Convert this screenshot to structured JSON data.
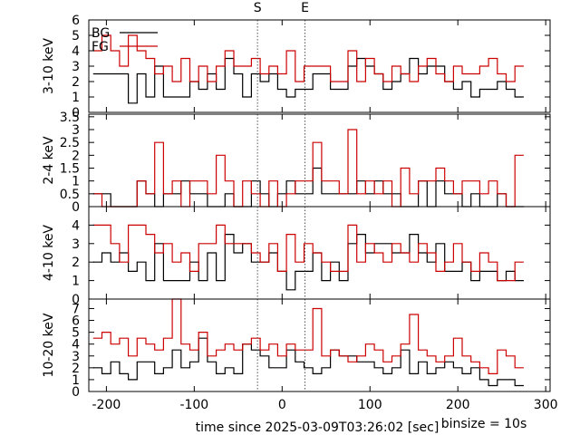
{
  "chart_data": {
    "type": "line",
    "xlabel": "time since 2025-03-09T03:26:02 [sec]",
    "binsize_label": "binsize = 10s",
    "xlim": [
      -220,
      305
    ],
    "xticks": [
      -200,
      -100,
      0,
      100,
      200,
      300
    ],
    "markers": [
      {
        "label": "S",
        "x": -28
      },
      {
        "label": "E",
        "x": 26
      }
    ],
    "legend": [
      {
        "name": "BG",
        "color": "#000000"
      },
      {
        "name": "FG",
        "color": "#cc0000"
      }
    ],
    "panels": [
      {
        "ylabel": "3-10 keV",
        "ylim": [
          0,
          6
        ],
        "yticks": [
          0,
          1,
          2,
          3,
          4,
          5,
          6
        ],
        "series": [
          {
            "name": "BG",
            "x_start": -215,
            "step": 10,
            "values": [
              2.5,
              2.5,
              2.5,
              2.5,
              0.6,
              2.5,
              1.0,
              3.0,
              1.0,
              1.0,
              1.0,
              2.0,
              1.5,
              2.5,
              1.5,
              3.5,
              2.5,
              1.0,
              2.5,
              2.0,
              2.5,
              1.5,
              1.0,
              1.5,
              1.5,
              2.5,
              2.5,
              1.5,
              1.5,
              3.0,
              3.5,
              3.0,
              2.5,
              1.5,
              2.0,
              2.5,
              3.5,
              2.5,
              3.0,
              3.0,
              2.0,
              1.5,
              2.0,
              1.0,
              1.5,
              1.5,
              2.0,
              1.5,
              1.0
            ]
          },
          {
            "name": "FG",
            "x_start": -215,
            "step": 10,
            "values": [
              4.0,
              5.0,
              4.0,
              3.0,
              5.0,
              4.0,
              3.5,
              2.5,
              3.0,
              2.0,
              3.5,
              2.0,
              3.0,
              2.0,
              3.0,
              4.0,
              3.0,
              3.0,
              3.5,
              2.5,
              3.0,
              2.5,
              4.0,
              2.0,
              3.0,
              3.0,
              3.0,
              2.0,
              2.0,
              4.0,
              2.0,
              3.5,
              2.5,
              2.0,
              3.0,
              2.5,
              2.0,
              3.0,
              3.5,
              2.5,
              2.0,
              3.0,
              2.5,
              2.5,
              3.0,
              3.5,
              2.5,
              2.0,
              3.0
            ]
          }
        ]
      },
      {
        "ylabel": "2-4 keV",
        "ylim": [
          0,
          3.6
        ],
        "yticks": [
          0,
          0.5,
          1,
          1.5,
          2,
          2.5,
          3,
          3.5
        ],
        "series": [
          {
            "name": "BG",
            "x_start": -215,
            "step": 10,
            "values": [
              0.5,
              0.5,
              0.0,
              0.0,
              0.0,
              1.0,
              0.5,
              0.0,
              0.5,
              0.5,
              1.0,
              0.5,
              0.5,
              0.0,
              0.0,
              0.5,
              0.0,
              0.0,
              1.0,
              0.5,
              0.0,
              0.5,
              1.0,
              0.5,
              0.5,
              1.5,
              0.5,
              0.5,
              0.5,
              0.5,
              1.0,
              0.5,
              1.0,
              0.5,
              0.5,
              0.0,
              0.0,
              1.0,
              0.0,
              1.0,
              0.5,
              0.5,
              0.0,
              0.5,
              0.0,
              0.0,
              0.5,
              0.0,
              0.0
            ]
          },
          {
            "name": "FG",
            "x_start": -215,
            "step": 10,
            "values": [
              0.5,
              0.0,
              0.0,
              0.0,
              0.0,
              1.0,
              0.5,
              2.5,
              0.5,
              1.0,
              0.0,
              1.0,
              1.0,
              0.5,
              2.0,
              1.0,
              0.0,
              1.0,
              0.5,
              0.0,
              1.0,
              0.0,
              0.5,
              1.0,
              1.0,
              2.5,
              1.0,
              1.0,
              0.5,
              3.0,
              0.5,
              1.0,
              0.5,
              1.0,
              0.0,
              1.5,
              0.5,
              1.0,
              1.0,
              1.5,
              1.0,
              0.5,
              1.0,
              1.0,
              0.5,
              1.0,
              0.5,
              0.0,
              2.0
            ]
          }
        ]
      },
      {
        "ylabel": "4-10 keV",
        "ylim": [
          0,
          5
        ],
        "yticks": [
          0,
          1,
          2,
          3,
          4
        ],
        "series": [
          {
            "name": "BG",
            "x_start": -215,
            "step": 10,
            "values": [
              2.0,
              2.5,
              2.0,
              2.5,
              1.5,
              2.0,
              1.0,
              3.0,
              1.0,
              1.0,
              1.0,
              2.0,
              1.0,
              2.5,
              1.0,
              3.5,
              2.5,
              3.0,
              2.0,
              2.0,
              2.5,
              1.5,
              0.5,
              1.5,
              1.5,
              2.5,
              1.0,
              2.0,
              1.0,
              3.0,
              3.5,
              2.5,
              3.0,
              3.0,
              2.5,
              2.5,
              3.5,
              2.5,
              2.0,
              3.0,
              1.5,
              1.5,
              2.0,
              1.0,
              1.5,
              1.5,
              1.0,
              1.5,
              1.0
            ]
          },
          {
            "name": "FG",
            "x_start": -215,
            "step": 10,
            "values": [
              4.0,
              4.0,
              3.0,
              2.0,
              4.0,
              4.0,
              3.5,
              2.5,
              3.0,
              2.0,
              2.5,
              1.5,
              3.0,
              3.0,
              4.0,
              3.0,
              3.0,
              3.0,
              2.5,
              2.0,
              3.0,
              1.5,
              3.5,
              2.0,
              3.0,
              2.5,
              2.0,
              1.5,
              1.5,
              4.0,
              2.0,
              3.0,
              2.5,
              2.0,
              3.0,
              2.5,
              2.0,
              3.0,
              2.5,
              1.5,
              2.0,
              3.0,
              2.0,
              1.5,
              2.5,
              2.0,
              1.0,
              1.0,
              2.0
            ]
          }
        ]
      },
      {
        "ylabel": "10-20 keV",
        "ylim": [
          0,
          7.8
        ],
        "yticks": [
          0,
          1,
          2,
          3,
          4,
          5,
          6,
          7
        ],
        "series": [
          {
            "name": "BG",
            "x_start": -215,
            "step": 10,
            "values": [
              2.0,
              1.5,
              2.5,
              1.5,
              1.0,
              2.5,
              2.5,
              1.5,
              2.0,
              3.5,
              2.0,
              2.5,
              4.5,
              2.5,
              1.5,
              2.0,
              1.5,
              4.0,
              3.5,
              3.0,
              2.0,
              2.0,
              3.5,
              2.5,
              2.0,
              1.5,
              2.0,
              3.5,
              3.0,
              3.0,
              2.5,
              2.5,
              2.0,
              1.5,
              2.0,
              3.5,
              1.5,
              2.5,
              1.5,
              2.0,
              2.5,
              2.0,
              1.5,
              2.0,
              1.0,
              0.5,
              1.0,
              1.0,
              0.5
            ]
          },
          {
            "name": "FG",
            "x_start": -215,
            "step": 10,
            "values": [
              4.5,
              5.0,
              4.0,
              4.5,
              3.0,
              4.5,
              4.0,
              3.5,
              4.5,
              8.0,
              4.0,
              3.5,
              5.0,
              3.0,
              3.5,
              4.0,
              3.5,
              4.0,
              4.5,
              3.5,
              4.0,
              3.0,
              4.0,
              3.5,
              3.5,
              7.0,
              3.0,
              3.5,
              3.0,
              2.5,
              3.0,
              4.0,
              3.5,
              2.5,
              3.0,
              4.0,
              6.5,
              3.5,
              3.0,
              2.5,
              3.0,
              4.5,
              3.0,
              2.5,
              2.0,
              1.5,
              3.5,
              3.0,
              2.0
            ]
          }
        ]
      }
    ]
  }
}
